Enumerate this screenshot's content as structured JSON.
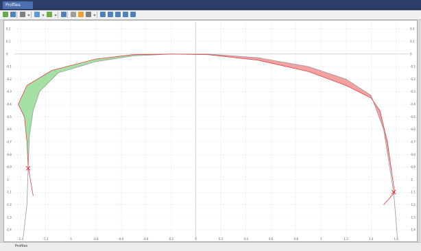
{
  "window": {
    "tab_label": "Profiles",
    "status_text": "Profiles"
  },
  "toolbar": {
    "icons": [
      {
        "name": "new-profile-icon",
        "color": "#6aa84f"
      },
      {
        "name": "open-profile-icon",
        "color": "#4f81bd"
      },
      {
        "name": "ruler-icon",
        "color": "#7f7f7f"
      },
      {
        "name": "dropdown-arrow-icon",
        "color": "#7f7f7f"
      },
      {
        "name": "layers-icon",
        "color": "#5b9bd5"
      },
      {
        "name": "dropdown-arrow-icon",
        "color": "#7f7f7f"
      },
      {
        "name": "table-icon",
        "color": "#70ad47"
      },
      {
        "name": "dropdown-arrow-icon",
        "color": "#7f7f7f"
      },
      {
        "name": "brush-icon",
        "color": "#4f81bd"
      },
      {
        "name": "eraser-icon",
        "color": "#9e9e9e"
      },
      {
        "name": "highlight-icon",
        "color": "#f0a030"
      },
      {
        "name": "pointer-icon",
        "color": "#7f7f7f"
      },
      {
        "name": "dropdown-arrow-icon",
        "color": "#7f7f7f"
      },
      {
        "name": "zoom-icon",
        "color": "#4f81bd"
      },
      {
        "name": "zoom-in-icon",
        "color": "#4f81bd"
      },
      {
        "name": "zoom-out-icon",
        "color": "#4f81bd"
      },
      {
        "name": "zoom-extent-icon",
        "color": "#4f81bd"
      },
      {
        "name": "pan-icon",
        "color": "#4f81bd"
      }
    ]
  },
  "chart_data": {
    "type": "line",
    "title": "",
    "xlabel": "",
    "ylabel": "",
    "xlim": [
      -1.45,
      1.7
    ],
    "ylim": [
      -1.47,
      0.25
    ],
    "grid": true,
    "x_ticks": [
      "-1.4",
      "-1.2",
      "-1",
      "-0.8",
      "-0.6",
      "-0.4",
      "-0.2",
      "0",
      "0.2",
      "0.4",
      "0.6",
      "0.8",
      "1",
      "1.2",
      "1.4",
      "1.6"
    ],
    "y_ticks": [
      "0.2",
      "0.1",
      "0",
      "-0.1",
      "-0.2",
      "-0.3",
      "-0.4",
      "-0.5",
      "-0.6",
      "-0.7",
      "-0.8",
      "-0.9",
      "-1",
      "-1.1",
      "-1.2",
      "-1.3",
      "-1.4"
    ],
    "colors": {
      "inner_profile": "#9a9a9a",
      "outer_profile": "#e04040",
      "gain_fill": "#8fd88f",
      "loss_fill": "#f08a8a",
      "contact_marker": "#e02020"
    },
    "series": [
      {
        "points": [
          [
            -1.38,
            -1.46
          ],
          [
            -1.35,
            -1.2
          ],
          [
            -1.34,
            -0.9
          ],
          [
            -1.33,
            -0.65
          ],
          [
            -1.3,
            -0.45
          ],
          [
            -1.25,
            -0.3
          ],
          [
            -1.1,
            -0.15
          ],
          [
            -0.8,
            -0.06
          ],
          [
            -0.5,
            -0.015
          ],
          [
            -0.2,
            0.0
          ],
          [
            0.1,
            0.0
          ],
          [
            0.5,
            -0.03
          ],
          [
            0.9,
            -0.1
          ],
          [
            1.2,
            -0.2
          ],
          [
            1.4,
            -0.33
          ],
          [
            1.5,
            -0.6
          ],
          [
            1.58,
            -1.1
          ],
          [
            1.61,
            -1.46
          ]
        ]
      },
      {
        "points": [
          [
            -1.3,
            -1.13
          ],
          [
            -1.34,
            -0.9
          ],
          [
            -1.35,
            -0.7
          ],
          [
            -1.37,
            -0.5
          ],
          [
            -1.42,
            -0.4
          ],
          [
            -1.35,
            -0.25
          ],
          [
            -1.15,
            -0.13
          ],
          [
            -0.8,
            -0.04
          ],
          [
            -0.5,
            -0.005
          ],
          [
            -0.2,
            0.0
          ],
          [
            0.1,
            -0.005
          ],
          [
            0.5,
            -0.05
          ],
          [
            0.9,
            -0.14
          ],
          [
            1.2,
            -0.25
          ],
          [
            1.4,
            -0.35
          ],
          [
            1.47,
            -0.45
          ],
          [
            1.53,
            -0.7
          ],
          [
            1.58,
            -1.05
          ],
          [
            1.59,
            -1.1
          ],
          [
            1.5,
            -1.2
          ]
        ]
      }
    ],
    "contact_points": [
      [
        -1.34,
        -0.91
      ],
      [
        1.58,
        -1.1
      ]
    ]
  }
}
